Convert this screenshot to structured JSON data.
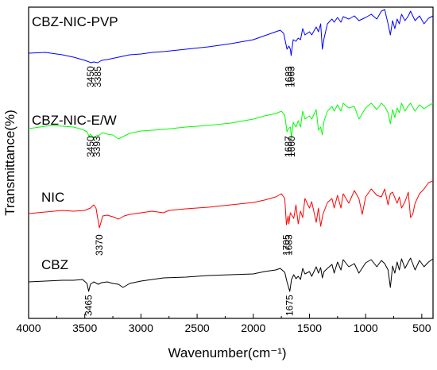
{
  "chart_data": {
    "type": "line",
    "title": "",
    "xlabel": "Wavenumber(cm⁻¹)",
    "ylabel": "Transmittance(%)",
    "xlim": [
      4000,
      400
    ],
    "x_reversed": true,
    "xticks": [
      {
        "value": 4000,
        "label": "4000"
      },
      {
        "value": 3500,
        "label": "3500"
      },
      {
        "value": 3000,
        "label": "3000"
      },
      {
        "value": 2500,
        "label": "2500"
      },
      {
        "value": 2000,
        "label": "2000"
      },
      {
        "value": 1500,
        "label": "1500"
      },
      {
        "value": 1000,
        "label": "1000"
      },
      {
        "value": 500,
        "label": "500"
      }
    ],
    "y_tick_labels_shown": false,
    "series": [
      {
        "name": "CBZ-NIC-PVP",
        "color": "#0000ff",
        "points": [
          [
            4000,
            67
          ],
          [
            3850,
            66
          ],
          [
            3700,
            69
          ],
          [
            3600,
            72
          ],
          [
            3500,
            76
          ],
          [
            3460,
            78
          ],
          [
            3450,
            79
          ],
          [
            3420,
            78
          ],
          [
            3385,
            79
          ],
          [
            3350,
            76
          ],
          [
            3300,
            75
          ],
          [
            3200,
            72
          ],
          [
            3100,
            69
          ],
          [
            3000,
            68
          ],
          [
            2900,
            66
          ],
          [
            2800,
            65
          ],
          [
            2600,
            62
          ],
          [
            2400,
            59
          ],
          [
            2200,
            55
          ],
          [
            2000,
            50
          ],
          [
            1900,
            45
          ],
          [
            1800,
            40
          ],
          [
            1760,
            38
          ],
          [
            1730,
            42
          ],
          [
            1700,
            62
          ],
          [
            1683,
            58
          ],
          [
            1670,
            62
          ],
          [
            1663,
            70
          ],
          [
            1645,
            50
          ],
          [
            1620,
            52
          ],
          [
            1600,
            48
          ],
          [
            1580,
            50
          ],
          [
            1560,
            36
          ],
          [
            1540,
            44
          ],
          [
            1500,
            40
          ],
          [
            1480,
            44
          ],
          [
            1440,
            34
          ],
          [
            1420,
            40
          ],
          [
            1400,
            30
          ],
          [
            1385,
            62
          ],
          [
            1370,
            48
          ],
          [
            1340,
            30
          ],
          [
            1300,
            24
          ],
          [
            1280,
            28
          ],
          [
            1250,
            22
          ],
          [
            1220,
            28
          ],
          [
            1200,
            21
          ],
          [
            1150,
            24
          ],
          [
            1100,
            20
          ],
          [
            1060,
            26
          ],
          [
            1000,
            22
          ],
          [
            950,
            18
          ],
          [
            900,
            24
          ],
          [
            860,
            14
          ],
          [
            830,
            12
          ],
          [
            800,
            30
          ],
          [
            780,
            44
          ],
          [
            760,
            26
          ],
          [
            740,
            36
          ],
          [
            720,
            24
          ],
          [
            700,
            30
          ],
          [
            680,
            18
          ],
          [
            650,
            26
          ],
          [
            620,
            20
          ],
          [
            600,
            14
          ],
          [
            560,
            26
          ],
          [
            520,
            20
          ],
          [
            480,
            30
          ],
          [
            440,
            23
          ],
          [
            400,
            20
          ]
        ]
      },
      {
        "name": "CBZ-NIC-E/W",
        "color": "#00ff00",
        "points": [
          [
            4000,
            162
          ],
          [
            3800,
            158
          ],
          [
            3700,
            159
          ],
          [
            3600,
            160
          ],
          [
            3520,
            163
          ],
          [
            3480,
            166
          ],
          [
            3460,
            172
          ],
          [
            3450,
            169
          ],
          [
            3420,
            173
          ],
          [
            3393,
            171
          ],
          [
            3370,
            170
          ],
          [
            3340,
            167
          ],
          [
            3300,
            169
          ],
          [
            3250,
            170
          ],
          [
            3200,
            175
          ],
          [
            3160,
            172
          ],
          [
            3100,
            168
          ],
          [
            3000,
            165
          ],
          [
            2900,
            164
          ],
          [
            2800,
            163
          ],
          [
            2600,
            160
          ],
          [
            2400,
            158
          ],
          [
            2200,
            155
          ],
          [
            2000,
            150
          ],
          [
            1900,
            146
          ],
          [
            1800,
            143
          ],
          [
            1750,
            140
          ],
          [
            1720,
            145
          ],
          [
            1700,
            166
          ],
          [
            1687,
            162
          ],
          [
            1670,
            160
          ],
          [
            1660,
            174
          ],
          [
            1645,
            154
          ],
          [
            1620,
            160
          ],
          [
            1600,
            152
          ],
          [
            1580,
            160
          ],
          [
            1560,
            140
          ],
          [
            1540,
            150
          ],
          [
            1500,
            146
          ],
          [
            1480,
            150
          ],
          [
            1440,
            138
          ],
          [
            1420,
            164
          ],
          [
            1400,
            160
          ],
          [
            1385,
            170
          ],
          [
            1370,
            152
          ],
          [
            1340,
            140
          ],
          [
            1300,
            134
          ],
          [
            1280,
            140
          ],
          [
            1250,
            132
          ],
          [
            1220,
            140
          ],
          [
            1200,
            130
          ],
          [
            1150,
            136
          ],
          [
            1100,
            134
          ],
          [
            1060,
            150
          ],
          [
            1000,
            136
          ],
          [
            950,
            130
          ],
          [
            900,
            138
          ],
          [
            860,
            130
          ],
          [
            830,
            134
          ],
          [
            800,
            142
          ],
          [
            780,
            156
          ],
          [
            760,
            138
          ],
          [
            740,
            148
          ],
          [
            720,
            136
          ],
          [
            700,
            142
          ],
          [
            680,
            130
          ],
          [
            650,
            140
          ],
          [
            620,
            133
          ],
          [
            600,
            130
          ],
          [
            560,
            140
          ],
          [
            520,
            132
          ],
          [
            480,
            137
          ],
          [
            440,
            133
          ],
          [
            400,
            130
          ]
        ]
      },
      {
        "name": "NIC",
        "color": "#ff0000",
        "points": [
          [
            4000,
            269
          ],
          [
            3850,
            267
          ],
          [
            3700,
            265
          ],
          [
            3600,
            266
          ],
          [
            3500,
            265
          ],
          [
            3450,
            262
          ],
          [
            3420,
            258
          ],
          [
            3400,
            262
          ],
          [
            3370,
            287
          ],
          [
            3340,
            272
          ],
          [
            3300,
            271
          ],
          [
            3250,
            273
          ],
          [
            3200,
            276
          ],
          [
            3150,
            272
          ],
          [
            3100,
            270
          ],
          [
            3000,
            268
          ],
          [
            2900,
            266
          ],
          [
            2800,
            268
          ],
          [
            2750,
            265
          ],
          [
            2600,
            263
          ],
          [
            2400,
            261
          ],
          [
            2200,
            258
          ],
          [
            2000,
            255
          ],
          [
            1900,
            252
          ],
          [
            1800,
            248
          ],
          [
            1750,
            244
          ],
          [
            1720,
            250
          ],
          [
            1705,
            283
          ],
          [
            1690,
            272
          ],
          [
            1683,
            282
          ],
          [
            1670,
            268
          ],
          [
            1640,
            275
          ],
          [
            1620,
            258
          ],
          [
            1600,
            282
          ],
          [
            1580,
            266
          ],
          [
            1560,
            274
          ],
          [
            1540,
            250
          ],
          [
            1500,
            262
          ],
          [
            1480,
            254
          ],
          [
            1440,
            280
          ],
          [
            1420,
            262
          ],
          [
            1400,
            285
          ],
          [
            1380,
            270
          ],
          [
            1340,
            255
          ],
          [
            1300,
            250
          ],
          [
            1280,
            262
          ],
          [
            1250,
            246
          ],
          [
            1220,
            262
          ],
          [
            1200,
            244
          ],
          [
            1150,
            256
          ],
          [
            1100,
            240
          ],
          [
            1060,
            250
          ],
          [
            1030,
            270
          ],
          [
            1000,
            248
          ],
          [
            950,
            238
          ],
          [
            900,
            246
          ],
          [
            860,
            248
          ],
          [
            830,
            238
          ],
          [
            800,
            258
          ],
          [
            780,
            244
          ],
          [
            760,
            242
          ],
          [
            720,
            256
          ],
          [
            700,
            248
          ],
          [
            680,
            262
          ],
          [
            650,
            254
          ],
          [
            620,
            242
          ],
          [
            600,
            274
          ],
          [
            580,
            270
          ],
          [
            560,
            256
          ],
          [
            520,
            244
          ],
          [
            480,
            238
          ],
          [
            440,
            230
          ],
          [
            400,
            228
          ]
        ]
      },
      {
        "name": "CBZ",
        "color": "#000000",
        "points": [
          [
            4000,
            355
          ],
          [
            3850,
            354
          ],
          [
            3700,
            353
          ],
          [
            3600,
            353
          ],
          [
            3520,
            352
          ],
          [
            3480,
            357
          ],
          [
            3465,
            367
          ],
          [
            3450,
            358
          ],
          [
            3420,
            355
          ],
          [
            3380,
            358
          ],
          [
            3350,
            356
          ],
          [
            3300,
            355
          ],
          [
            3250,
            357
          ],
          [
            3200,
            358
          ],
          [
            3160,
            362
          ],
          [
            3100,
            357
          ],
          [
            3000,
            354
          ],
          [
            2900,
            352
          ],
          [
            2800,
            350
          ],
          [
            2600,
            349
          ],
          [
            2400,
            347
          ],
          [
            2200,
            346
          ],
          [
            2000,
            345
          ],
          [
            1900,
            342
          ],
          [
            1800,
            340
          ],
          [
            1760,
            338
          ],
          [
            1720,
            343
          ],
          [
            1700,
            355
          ],
          [
            1675,
            367
          ],
          [
            1660,
            352
          ],
          [
            1640,
            346
          ],
          [
            1620,
            351
          ],
          [
            1600,
            348
          ],
          [
            1580,
            352
          ],
          [
            1560,
            338
          ],
          [
            1540,
            345
          ],
          [
            1500,
            342
          ],
          [
            1480,
            348
          ],
          [
            1440,
            336
          ],
          [
            1420,
            344
          ],
          [
            1400,
            337
          ],
          [
            1385,
            350
          ],
          [
            1370,
            342
          ],
          [
            1340,
            338
          ],
          [
            1300,
            333
          ],
          [
            1280,
            344
          ],
          [
            1250,
            330
          ],
          [
            1220,
            340
          ],
          [
            1200,
            327
          ],
          [
            1150,
            336
          ],
          [
            1100,
            332
          ],
          [
            1060,
            344
          ],
          [
            1000,
            331
          ],
          [
            950,
            327
          ],
          [
            900,
            336
          ],
          [
            860,
            328
          ],
          [
            830,
            332
          ],
          [
            800,
            340
          ],
          [
            780,
            362
          ],
          [
            760,
            335
          ],
          [
            740,
            344
          ],
          [
            720,
            330
          ],
          [
            700,
            340
          ],
          [
            680,
            326
          ],
          [
            650,
            338
          ],
          [
            620,
            330
          ],
          [
            600,
            325
          ],
          [
            560,
            340
          ],
          [
            520,
            328
          ],
          [
            480,
            336
          ],
          [
            440,
            330
          ],
          [
            400,
            326
          ]
        ]
      }
    ],
    "series_labels": [
      {
        "text": "CBZ-NIC-PVP",
        "series": 0
      },
      {
        "text": "CBZ-NIC-E/W",
        "series": 1
      },
      {
        "text": "NIC",
        "series": 2
      },
      {
        "text": "CBZ",
        "series": 3
      }
    ],
    "annotations": [
      {
        "text": "3450",
        "x": 3450,
        "series": 0
      },
      {
        "text": "3385",
        "x": 3385,
        "series": 0
      },
      {
        "text": "1683",
        "x": 1683,
        "series": 0
      },
      {
        "text": "1663",
        "x": 1663,
        "series": 0
      },
      {
        "text": "3450",
        "x": 3450,
        "series": 1
      },
      {
        "text": "3393",
        "x": 3393,
        "series": 1
      },
      {
        "text": "1687",
        "x": 1687,
        "series": 1
      },
      {
        "text": "1660",
        "x": 1660,
        "series": 1
      },
      {
        "text": "3370",
        "x": 3370,
        "series": 2
      },
      {
        "text": "1705",
        "x": 1705,
        "series": 2
      },
      {
        "text": "1683",
        "x": 1683,
        "series": 2
      },
      {
        "text": "3465",
        "x": 3465,
        "series": 3
      },
      {
        "text": "1675",
        "x": 1675,
        "series": 3
      }
    ]
  }
}
